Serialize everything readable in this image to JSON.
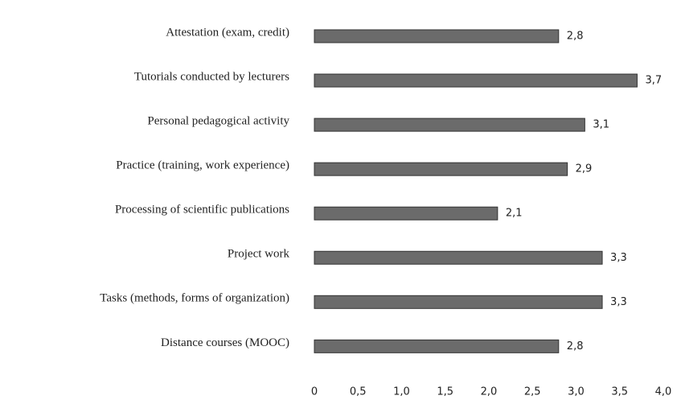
{
  "chart_data": {
    "type": "bar",
    "orientation": "horizontal",
    "categories": [
      "Attestation (exam, credit)",
      "Tutorials conducted by lecturers",
      "Personal pedagogical activity",
      "Practice (training, work experience)",
      "Processing of scientific publications",
      "Project work",
      "Tasks (methods, forms of organization)",
      "Distance courses (MOOC)"
    ],
    "values": [
      2.8,
      3.7,
      3.1,
      2.9,
      2.1,
      3.3,
      3.3,
      2.8
    ],
    "value_labels": [
      "2,8",
      "3,7",
      "3,1",
      "2,9",
      "2,1",
      "3,3",
      "3,3",
      "2,8"
    ],
    "color": "#6b6b6b",
    "xlim": [
      0,
      4
    ],
    "xticks": [
      0,
      {
        "value": 0.5,
        "label": "0,5"
      },
      {
        "value": 1,
        "label": "1,0"
      },
      {
        "value": 1.5,
        "label": "1,5"
      },
      {
        "value": 2,
        "label": "2,0"
      },
      {
        "value": 2.5,
        "label": "2,5"
      },
      {
        "value": 3,
        "label": "3,0"
      },
      {
        "value": 3.5,
        "label": "3,5"
      },
      {
        "value": 4,
        "label": "4,0"
      }
    ],
    "grid": false
  }
}
